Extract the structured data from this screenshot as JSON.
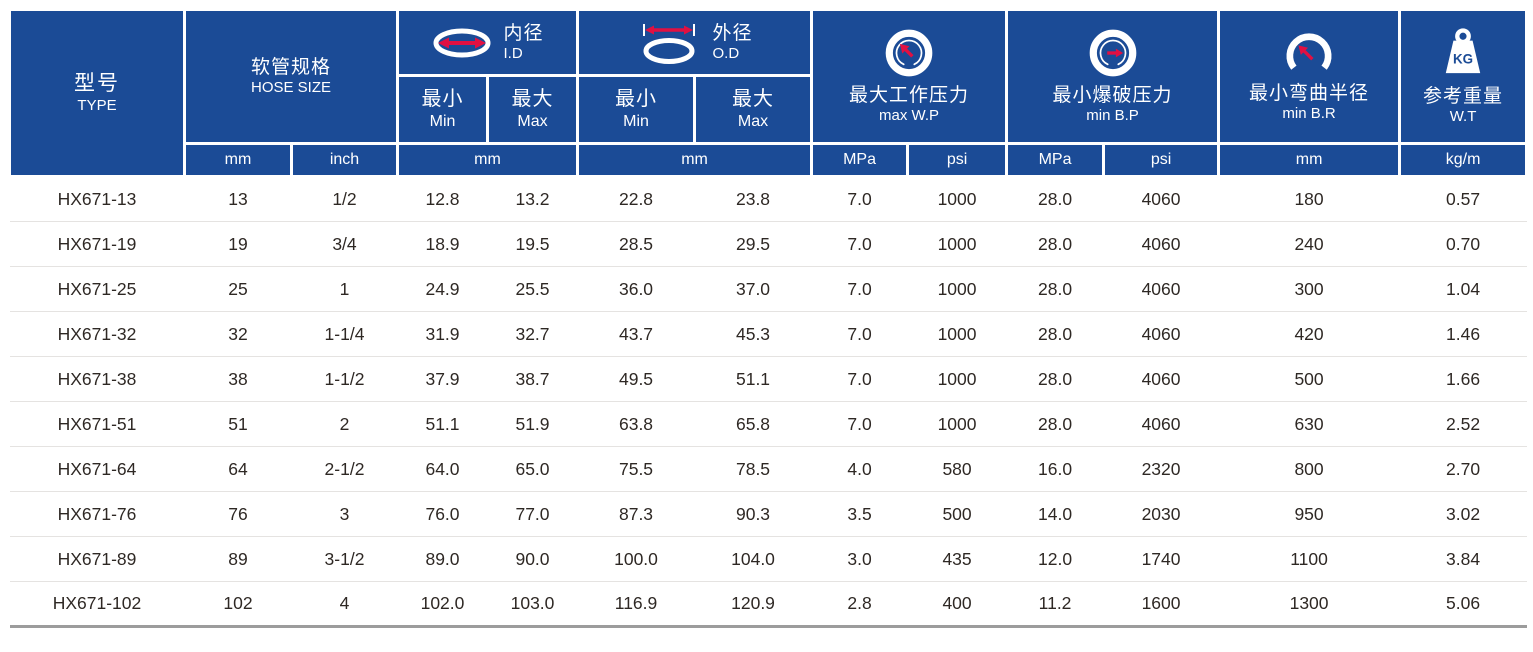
{
  "colors": {
    "header_bg": "#1b4b96",
    "accent": "#e11042",
    "row_line": "#e5e3e1",
    "text": "#2e2824",
    "bottom_line": "#9c9c9c"
  },
  "header": {
    "type": {
      "zh": "型号",
      "en": "TYPE"
    },
    "hose_size": {
      "zh": "软管规格",
      "en": "HOSE SIZE"
    },
    "id": {
      "zh": "内径",
      "en": "I.D"
    },
    "od": {
      "zh": "外径",
      "en": "O.D"
    },
    "min": {
      "zh": "最小",
      "en": "Min"
    },
    "max": {
      "zh": "最大",
      "en": "Max"
    },
    "wp": {
      "zh": "最大工作压力",
      "en": "max W.P"
    },
    "bp": {
      "zh": "最小爆破压力",
      "en": "min B.P"
    },
    "br": {
      "zh": "最小弯曲半径",
      "en": "min B.R"
    },
    "wt": {
      "zh": "参考重量",
      "en": "W.T"
    },
    "weight_icon_label": "KG",
    "units": {
      "hose_mm": "mm",
      "hose_inch": "inch",
      "id_mm": "mm",
      "od_mm": "mm",
      "wp_mpa": "MPa",
      "wp_psi": "psi",
      "bp_mpa": "MPa",
      "bp_psi": "psi",
      "br_mm": "mm",
      "wt_kgm": "kg/m"
    }
  },
  "columns": [
    "type",
    "hose_mm",
    "hose_inch",
    "id_min",
    "id_max",
    "od_min",
    "od_max",
    "wp_mpa",
    "wp_psi",
    "bp_mpa",
    "bp_psi",
    "br_mm",
    "wt_kgm"
  ],
  "rows": [
    [
      "HX671-13",
      "13",
      "1/2",
      "12.8",
      "13.2",
      "22.8",
      "23.8",
      "7.0",
      "1000",
      "28.0",
      "4060",
      "180",
      "0.57"
    ],
    [
      "HX671-19",
      "19",
      "3/4",
      "18.9",
      "19.5",
      "28.5",
      "29.5",
      "7.0",
      "1000",
      "28.0",
      "4060",
      "240",
      "0.70"
    ],
    [
      "HX671-25",
      "25",
      "1",
      "24.9",
      "25.5",
      "36.0",
      "37.0",
      "7.0",
      "1000",
      "28.0",
      "4060",
      "300",
      "1.04"
    ],
    [
      "HX671-32",
      "32",
      "1-1/4",
      "31.9",
      "32.7",
      "43.7",
      "45.3",
      "7.0",
      "1000",
      "28.0",
      "4060",
      "420",
      "1.46"
    ],
    [
      "HX671-38",
      "38",
      "1-1/2",
      "37.9",
      "38.7",
      "49.5",
      "51.1",
      "7.0",
      "1000",
      "28.0",
      "4060",
      "500",
      "1.66"
    ],
    [
      "HX671-51",
      "51",
      "2",
      "51.1",
      "51.9",
      "63.8",
      "65.8",
      "7.0",
      "1000",
      "28.0",
      "4060",
      "630",
      "2.52"
    ],
    [
      "HX671-64",
      "64",
      "2-1/2",
      "64.0",
      "65.0",
      "75.5",
      "78.5",
      "4.0",
      "580",
      "16.0",
      "2320",
      "800",
      "2.70"
    ],
    [
      "HX671-76",
      "76",
      "3",
      "76.0",
      "77.0",
      "87.3",
      "90.3",
      "3.5",
      "500",
      "14.0",
      "2030",
      "950",
      "3.02"
    ],
    [
      "HX671-89",
      "89",
      "3-1/2",
      "89.0",
      "90.0",
      "100.0",
      "104.0",
      "3.0",
      "435",
      "12.0",
      "1740",
      "1100",
      "3.84"
    ],
    [
      "HX671-102",
      "102",
      "4",
      "102.0",
      "103.0",
      "116.9",
      "120.9",
      "2.8",
      "400",
      "11.2",
      "1600",
      "1300",
      "5.06"
    ]
  ]
}
